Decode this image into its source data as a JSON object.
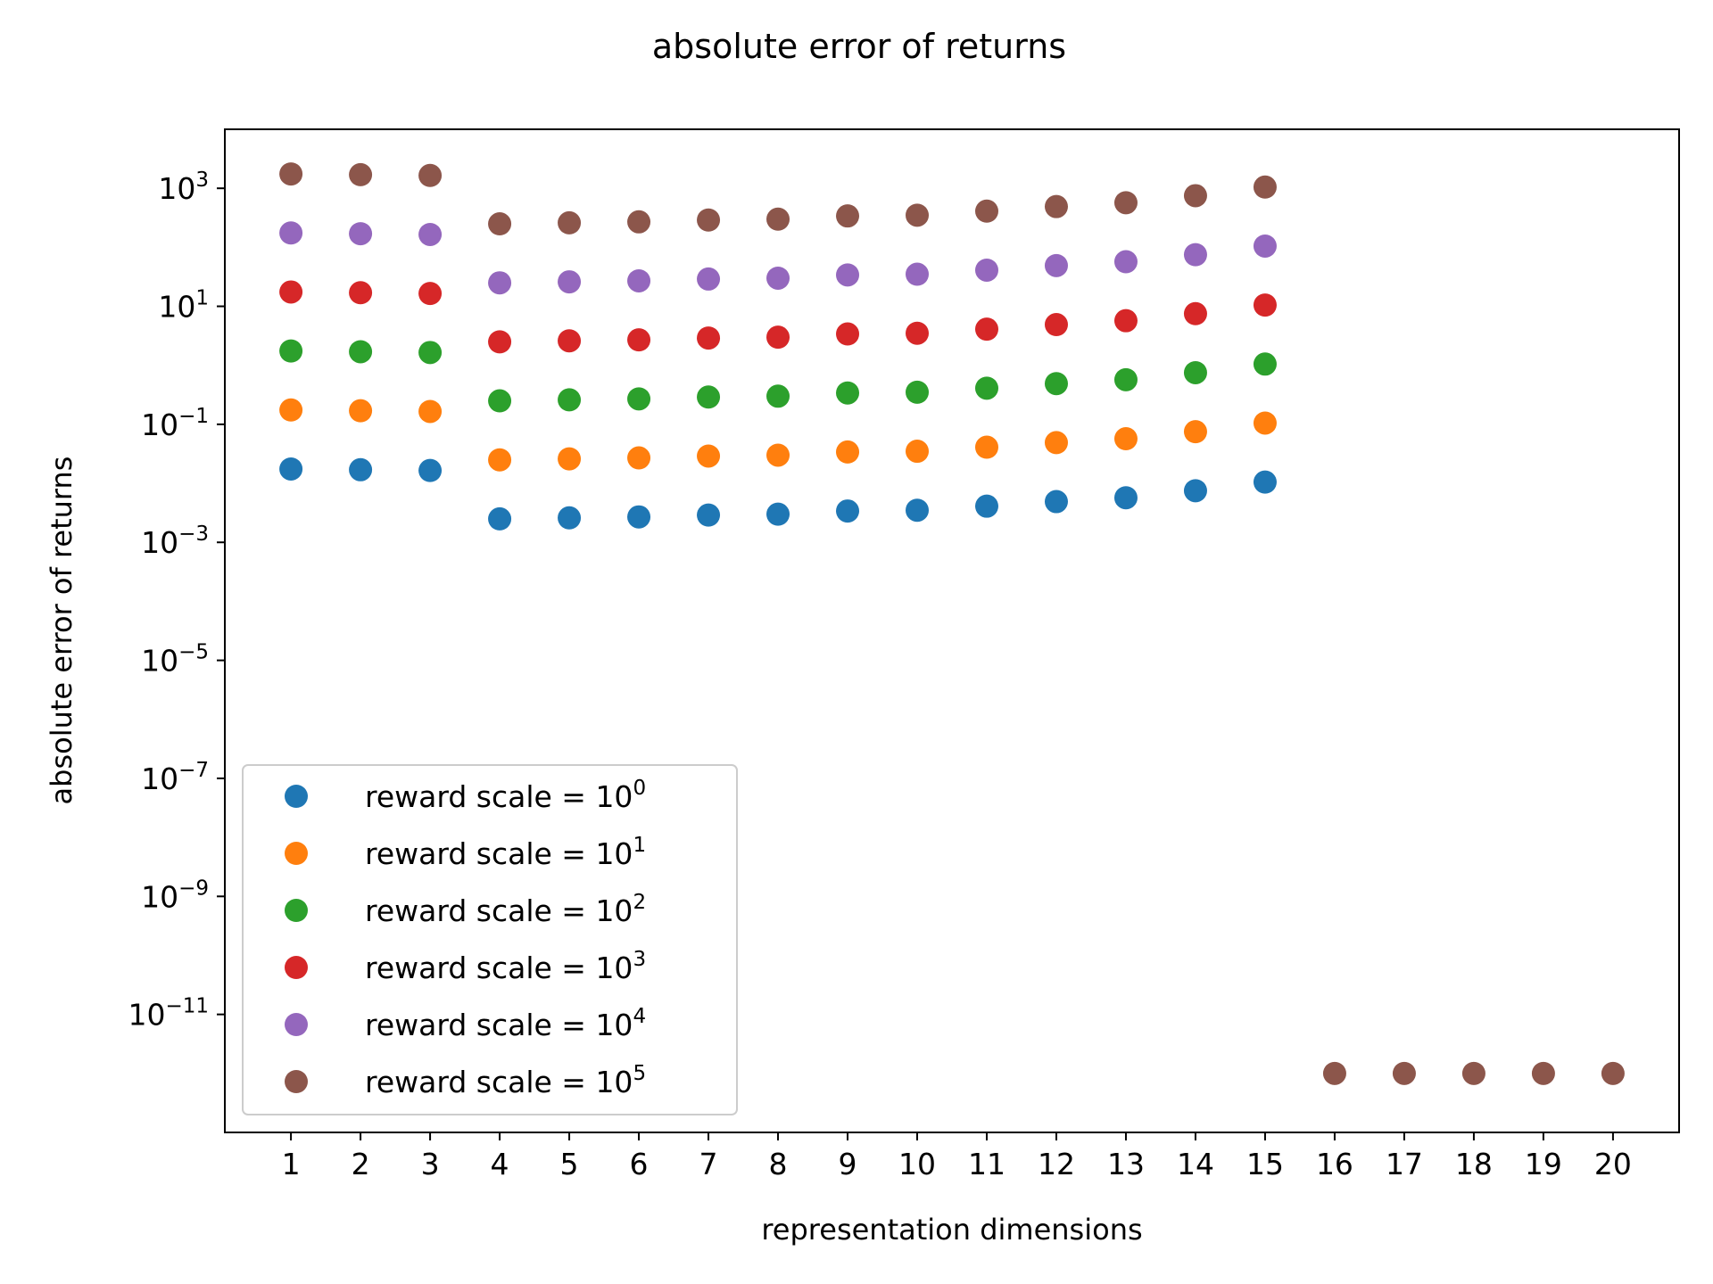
{
  "chart_data": {
    "type": "scatter",
    "title": "absolute error of returns",
    "xlabel": "representation dimensions",
    "ylabel": "absolute error of returns",
    "yscale": "log",
    "xlim": [
      0.05,
      20.95
    ],
    "ylim": [
      1e-13,
      10000.0
    ],
    "x_ticks": [
      1,
      2,
      3,
      4,
      5,
      6,
      7,
      8,
      9,
      10,
      11,
      12,
      13,
      14,
      15,
      16,
      17,
      18,
      19,
      20
    ],
    "y_ticks": [
      {
        "value": 1000.0,
        "base": "10",
        "exp": "3"
      },
      {
        "value": 10.0,
        "base": "10",
        "exp": "1"
      },
      {
        "value": 0.1,
        "base": "10",
        "exp": "−1"
      },
      {
        "value": 0.001,
        "base": "10",
        "exp": "−3"
      },
      {
        "value": 1e-05,
        "base": "10",
        "exp": "−5"
      },
      {
        "value": 1e-07,
        "base": "10",
        "exp": "−7"
      },
      {
        "value": 1e-09,
        "base": "10",
        "exp": "−9"
      },
      {
        "value": 1e-11,
        "base": "10",
        "exp": "−11"
      }
    ],
    "grid": false,
    "legend_position": "lower-left",
    "x": [
      1,
      2,
      3,
      4,
      5,
      6,
      7,
      8,
      9,
      10,
      11,
      12,
      13,
      14,
      15,
      16,
      17,
      18,
      19,
      20
    ],
    "series": [
      {
        "name": "reward scale = 10",
        "name_exp": "0",
        "color": "#1f77b4",
        "values": [
          0.0175,
          0.017,
          0.0165,
          0.0025,
          0.0026,
          0.0027,
          0.0029,
          0.003,
          0.0034,
          0.0035,
          0.0041,
          0.0049,
          0.0057,
          0.0075,
          0.0105,
          null,
          null,
          null,
          null,
          null
        ]
      },
      {
        "name": "reward scale = 10",
        "name_exp": "1",
        "color": "#ff7f0e",
        "values": [
          0.175,
          0.17,
          0.165,
          0.025,
          0.026,
          0.027,
          0.029,
          0.03,
          0.034,
          0.035,
          0.041,
          0.049,
          0.057,
          0.075,
          0.105,
          null,
          null,
          null,
          null,
          null
        ]
      },
      {
        "name": "reward scale = 10",
        "name_exp": "2",
        "color": "#2ca02c",
        "values": [
          1.75,
          1.7,
          1.65,
          0.25,
          0.26,
          0.27,
          0.29,
          0.3,
          0.34,
          0.35,
          0.41,
          0.49,
          0.57,
          0.75,
          1.05,
          null,
          null,
          null,
          null,
          null
        ]
      },
      {
        "name": "reward scale = 10",
        "name_exp": "3",
        "color": "#d62728",
        "values": [
          17.5,
          17,
          16.5,
          2.5,
          2.6,
          2.7,
          2.9,
          3.0,
          3.4,
          3.5,
          4.1,
          4.9,
          5.7,
          7.5,
          10.5,
          null,
          null,
          null,
          null,
          null
        ]
      },
      {
        "name": "reward scale = 10",
        "name_exp": "4",
        "color": "#9467bd",
        "values": [
          175,
          170,
          165,
          25,
          26,
          27,
          29,
          30,
          34,
          35,
          41,
          49,
          57,
          75,
          105,
          null,
          null,
          null,
          null,
          null
        ]
      },
      {
        "name": "reward scale = 10",
        "name_exp": "5",
        "color": "#8c564b",
        "values": [
          1750,
          1700,
          1650,
          250,
          260,
          270,
          290,
          300,
          340,
          350,
          410,
          490,
          570,
          750,
          1050,
          1e-12,
          1e-12,
          1e-12,
          1e-12,
          1e-12
        ]
      }
    ]
  }
}
